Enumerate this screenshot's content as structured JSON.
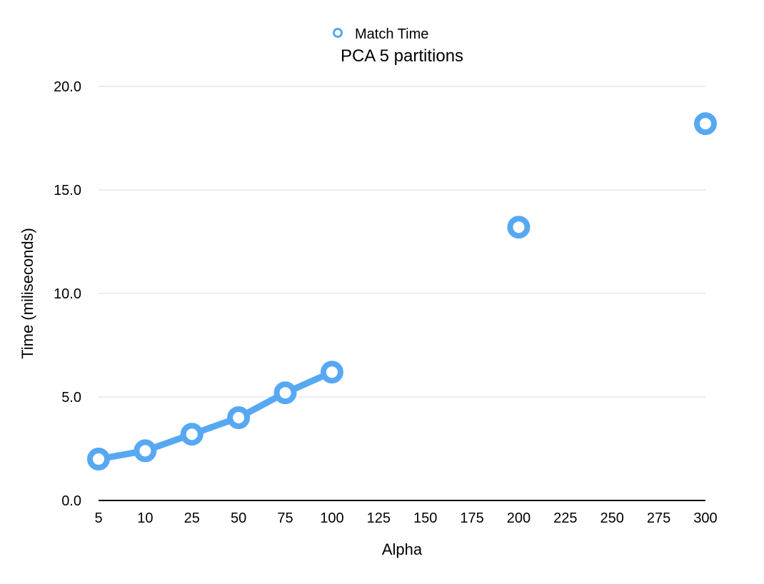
{
  "chart_data": {
    "type": "line",
    "title": "PCA 5 partitions",
    "xlabel": "Alpha",
    "ylabel": "Time (miliseconds)",
    "categories": [
      "5",
      "10",
      "25",
      "50",
      "75",
      "100",
      "125",
      "150",
      "175",
      "200",
      "225",
      "250",
      "275",
      "300"
    ],
    "ylim": [
      0,
      20
    ],
    "yticks": [
      "0.0",
      "5.0",
      "10.0",
      "15.0",
      "20.0"
    ],
    "grid": true,
    "legend_position": "top-center",
    "series": [
      {
        "name": "Match Time",
        "color": "#57a8f2",
        "values": [
          2.0,
          2.4,
          3.2,
          4.0,
          5.2,
          6.2,
          null,
          null,
          null,
          13.2,
          null,
          null,
          null,
          18.2
        ]
      }
    ]
  }
}
